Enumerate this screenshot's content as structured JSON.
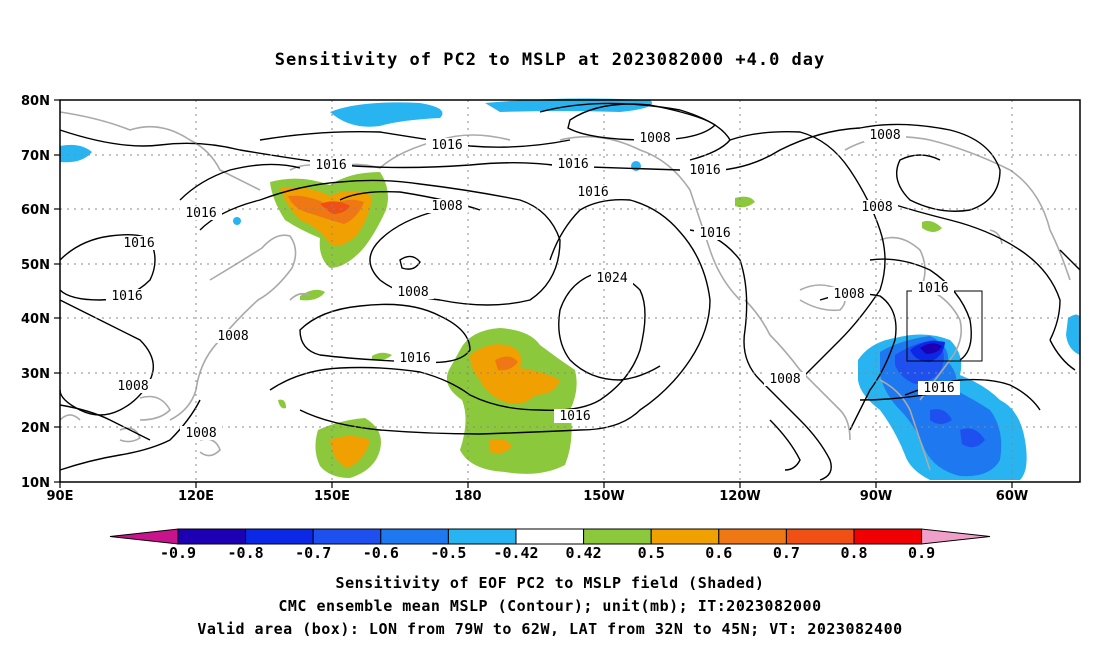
{
  "title": "Sensitivity of PC2 to MSLP at 2023082000 +4.0 day",
  "axes": {
    "lat_labels": [
      "80N",
      "70N",
      "60N",
      "50N",
      "40N",
      "30N",
      "20N",
      "10N"
    ],
    "lon_labels": [
      "90E",
      "120E",
      "150E",
      "180",
      "150W",
      "120W",
      "90W",
      "60W"
    ]
  },
  "contour_labels": [
    {
      "id": "c1",
      "text": "1016"
    },
    {
      "id": "c2",
      "text": "1016"
    },
    {
      "id": "c3",
      "text": "1008"
    },
    {
      "id": "c4",
      "text": "1016"
    },
    {
      "id": "c5",
      "text": "1016"
    },
    {
      "id": "c6",
      "text": "1008"
    },
    {
      "id": "c7",
      "text": "1016"
    },
    {
      "id": "c8",
      "text": "1016"
    },
    {
      "id": "c9",
      "text": "1016"
    },
    {
      "id": "c10",
      "text": "1008"
    },
    {
      "id": "c11",
      "text": "1008"
    },
    {
      "id": "c12",
      "text": "1016"
    },
    {
      "id": "c13",
      "text": "1024"
    },
    {
      "id": "c14",
      "text": "1016"
    },
    {
      "id": "c15",
      "text": "1008"
    },
    {
      "id": "c16",
      "text": "1016"
    },
    {
      "id": "c17",
      "text": "1008"
    },
    {
      "id": "c18",
      "text": "1008"
    },
    {
      "id": "c19",
      "text": "1008"
    },
    {
      "id": "c20",
      "text": "1008"
    },
    {
      "id": "c21",
      "text": "1016"
    },
    {
      "id": "c22",
      "text": "1008"
    }
  ],
  "colorbar": {
    "labels": [
      "-0.9",
      "-0.8",
      "-0.7",
      "-0.6",
      "-0.5",
      "-0.42",
      "0.42",
      "0.5",
      "0.6",
      "0.7",
      "0.8",
      "0.9"
    ],
    "colors": [
      "#1e00b4",
      "#0a28e6",
      "#1e50f0",
      "#1e78f0",
      "#28b4f0",
      "#ffffff",
      "#8cc83c",
      "#f0a000",
      "#f07814",
      "#f05014",
      "#f00000"
    ],
    "low_arrow": "#c8148c",
    "high_arrow": "#f0a0c8"
  },
  "footer": {
    "line1": "Sensitivity of EOF PC2 to MSLP field (Shaded)",
    "line2": "CMC ensemble mean MSLP (Contour); unit(mb); IT:2023082000",
    "line3": "Valid area (box): LON from 79W to 62W, LAT from 32N to 45N; VT: 2023082400"
  }
}
